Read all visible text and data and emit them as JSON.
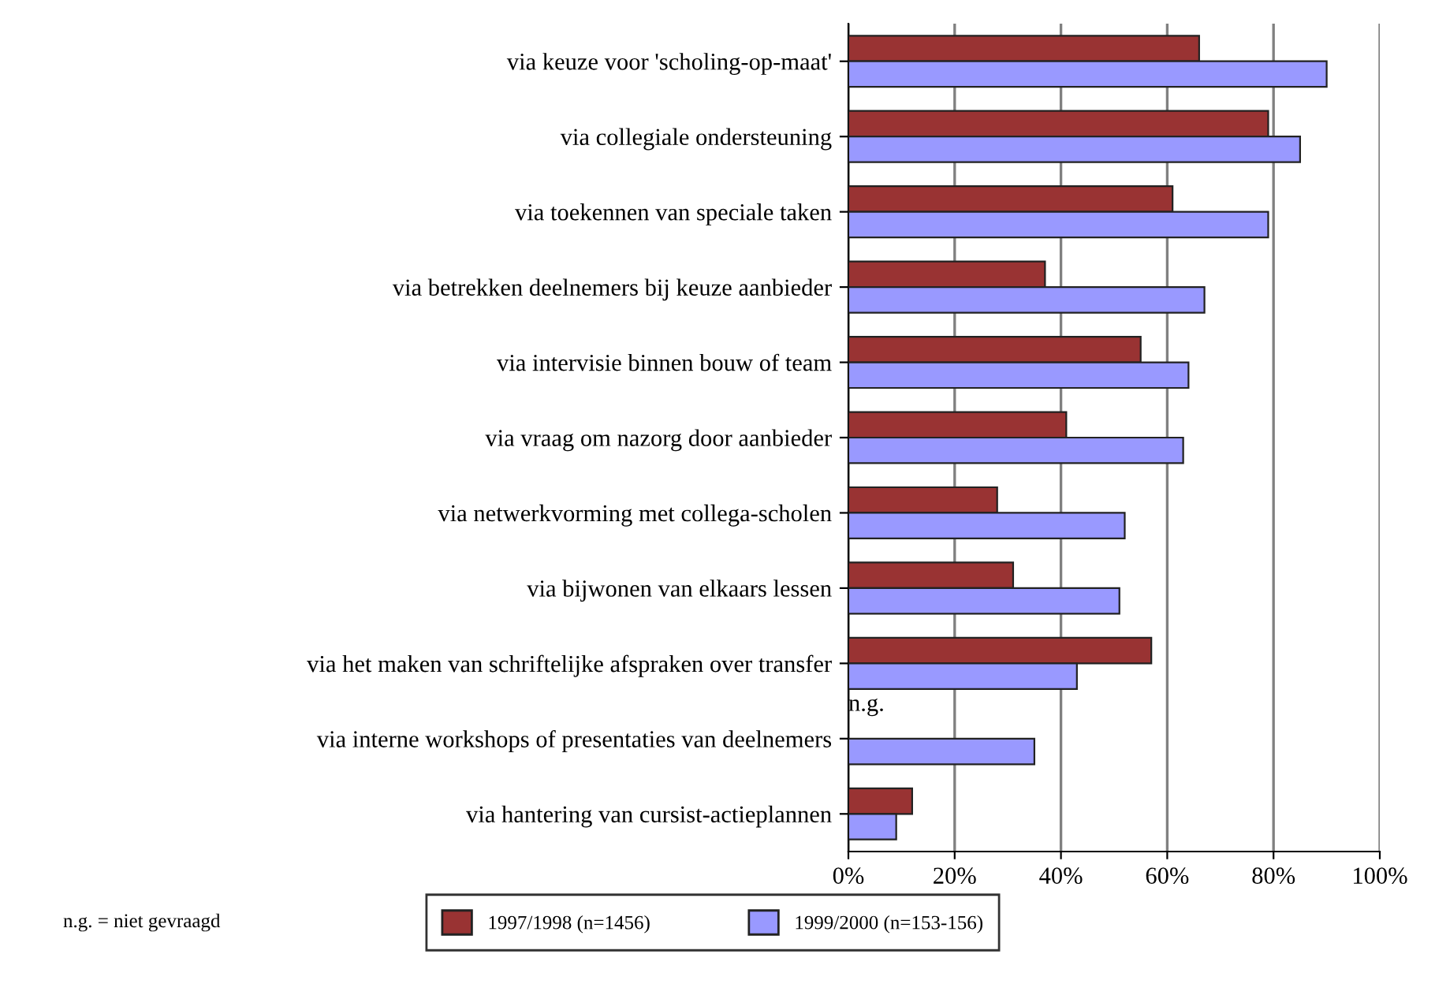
{
  "chart_data": {
    "type": "bar",
    "orientation": "horizontal",
    "categories": [
      "via keuze voor 'scholing-op-maat'",
      "via collegiale ondersteuning",
      "via toekennen van speciale taken",
      "via betrekken deelnemers bij keuze aanbieder",
      "via intervisie binnen bouw of team",
      "via vraag om nazorg door aanbieder",
      "via netwerkvorming met collega-scholen",
      "via bijwonen van elkaars lessen",
      "via het maken van schriftelijke afspraken over transfer",
      "via interne workshops of presentaties van deelnemers",
      "via hantering van cursist-actieplannen"
    ],
    "series": [
      {
        "name": "1997/1998 (n=1456)",
        "color": "#993333",
        "values": [
          66,
          79,
          61,
          37,
          55,
          41,
          28,
          31,
          57,
          null,
          12
        ]
      },
      {
        "name": "1999/2000 (n=153-156)",
        "color": "#9999ff",
        "values": [
          90,
          85,
          79,
          67,
          64,
          63,
          52,
          51,
          43,
          35,
          9
        ]
      }
    ],
    "xlim": [
      0,
      100
    ],
    "xticks": [
      {
        "value": 0,
        "label": "0%"
      },
      {
        "value": 20,
        "label": "20%"
      },
      {
        "value": 40,
        "label": "40%"
      },
      {
        "value": 60,
        "label": "60%"
      },
      {
        "value": 80,
        "label": "80%"
      },
      {
        "value": 100,
        "label": "100%"
      }
    ],
    "grid": "x",
    "legend": "bottom",
    "annotations": [
      {
        "text": "n.g.",
        "x": 0,
        "y": "via interne workshops of presentaties van deelnemers"
      },
      "n.g. = niet gevraagd"
    ]
  }
}
